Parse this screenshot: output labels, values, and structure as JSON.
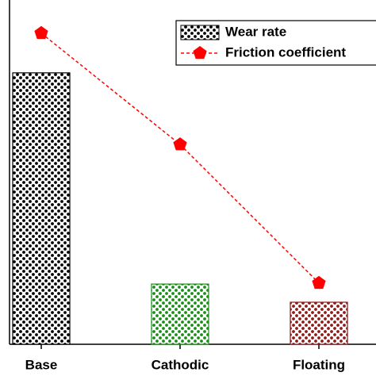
{
  "chart_data": {
    "type": "bar-line",
    "categories": [
      "Base",
      "Cathodic",
      "Floating"
    ],
    "series": [
      {
        "name": "Wear rate",
        "type": "bar",
        "colors": [
          "#000000",
          "#1a8c1a",
          "#8b1a1a"
        ],
        "color": "#000000",
        "values": [
          80.7,
          17.9,
          12.5
        ]
      },
      {
        "name": "Friction coefficient",
        "type": "line",
        "color": "#ff0000",
        "axis": "y2",
        "values": [
          92.5,
          59.4,
          18.2
        ]
      }
    ],
    "ylim": [
      0,
      100
    ],
    "y2lim": [
      0,
      100
    ]
  }
}
